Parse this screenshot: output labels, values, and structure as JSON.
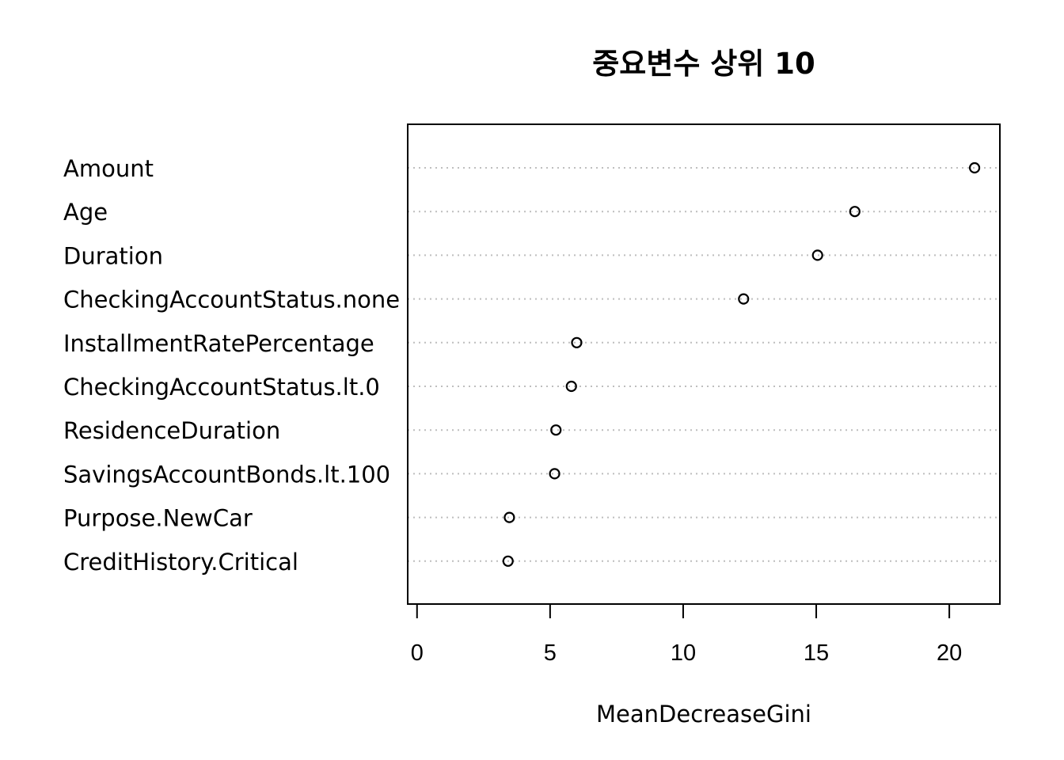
{
  "chart_data": {
    "type": "scatter",
    "title": "중요변수 상위 10",
    "xlabel": "MeanDecreaseGini",
    "ylabel": "",
    "xlim": [
      -0.35,
      21.9
    ],
    "x_ticks": [
      "0",
      "5",
      "10",
      "15",
      "20"
    ],
    "grid": "dotted horizontal lines per category",
    "categories": [
      "Amount",
      "Age",
      "Duration",
      "CheckingAccountStatus.none",
      "InstallmentRatePercentage",
      "CheckingAccountStatus.lt.0",
      "ResidenceDuration",
      "SavingsAccountBonds.lt.100",
      "Purpose.NewCar",
      "CreditHistory.Critical"
    ],
    "values": [
      20.95,
      16.45,
      15.05,
      12.27,
      6.0,
      5.8,
      5.22,
      5.17,
      3.47,
      3.42
    ]
  }
}
